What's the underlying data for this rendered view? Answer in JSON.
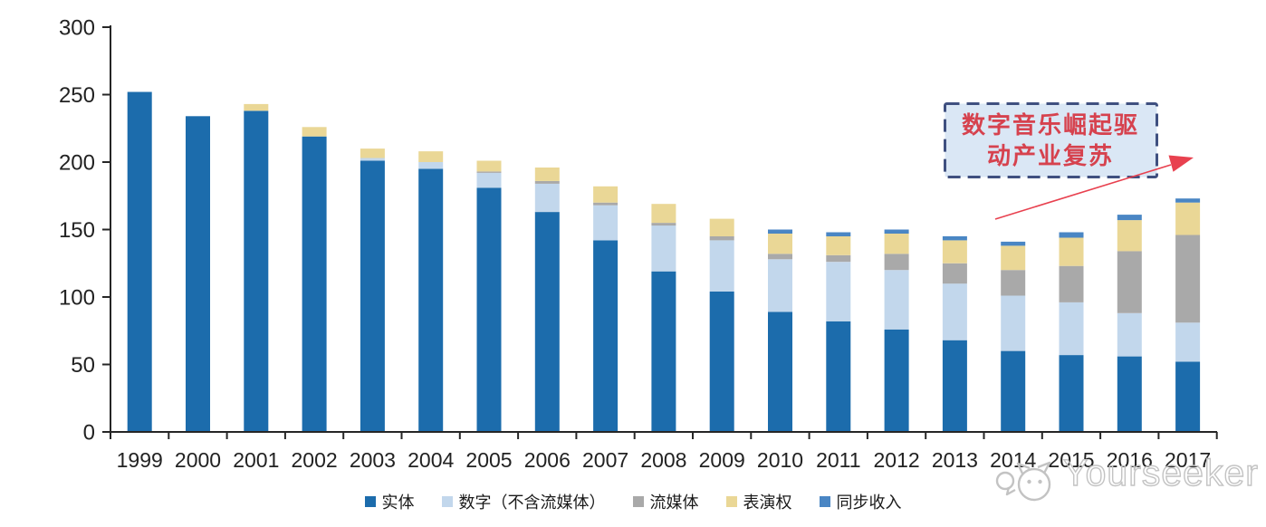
{
  "chart_data": {
    "type": "bar",
    "stacked": true,
    "categories": [
      "1999",
      "2000",
      "2001",
      "2002",
      "2003",
      "2004",
      "2005",
      "2006",
      "2007",
      "2008",
      "2009",
      "2010",
      "2011",
      "2012",
      "2013",
      "2014",
      "2015",
      "2016",
      "2017"
    ],
    "series": [
      {
        "name": "实体",
        "color": "#1C6CAC",
        "values": [
          252,
          234,
          238,
          219,
          201,
          195,
          181,
          163,
          142,
          119,
          104,
          89,
          82,
          76,
          68,
          60,
          57,
          56,
          52
        ]
      },
      {
        "name": "数字（不含流媒体）",
        "color": "#C2D7EC",
        "values": [
          0,
          0,
          0,
          0,
          2,
          5,
          11,
          21,
          26,
          34,
          38,
          39,
          44,
          44,
          42,
          41,
          39,
          32,
          29
        ]
      },
      {
        "name": "流媒体",
        "color": "#A9A9A9",
        "values": [
          0,
          0,
          0,
          0,
          0,
          0,
          1,
          2,
          2,
          2,
          3,
          4,
          5,
          12,
          15,
          19,
          27,
          46,
          65
        ]
      },
      {
        "name": "表演权",
        "color": "#EAD796",
        "values": [
          0,
          0,
          5,
          7,
          7,
          8,
          8,
          10,
          12,
          14,
          13,
          15,
          14,
          15,
          17,
          18,
          21,
          23,
          24
        ]
      },
      {
        "name": "同步收入",
        "color": "#4A86C4",
        "values": [
          0,
          0,
          0,
          0,
          0,
          0,
          0,
          0,
          0,
          0,
          0,
          3,
          3,
          3,
          3,
          3,
          4,
          4,
          3
        ]
      }
    ],
    "title": "",
    "xlabel": "",
    "ylabel": "",
    "ylim": [
      0,
      300
    ],
    "yticks": [
      0,
      50,
      100,
      150,
      200,
      250,
      300
    ],
    "grid": false,
    "legend_position": "bottom",
    "axis_color": "#262626"
  },
  "annotation": {
    "line1": "数字音乐崛起驱",
    "line2": "动产业复苏",
    "text_color": "#D6424E",
    "box_fill": "#DAE7F5",
    "box_border_color": "#3F5080",
    "arrow_color": "#E8414F"
  },
  "watermark": {
    "text": "Yourseeker",
    "logo_icon": "cat-logo-icon",
    "color": "#c3c3c3"
  }
}
